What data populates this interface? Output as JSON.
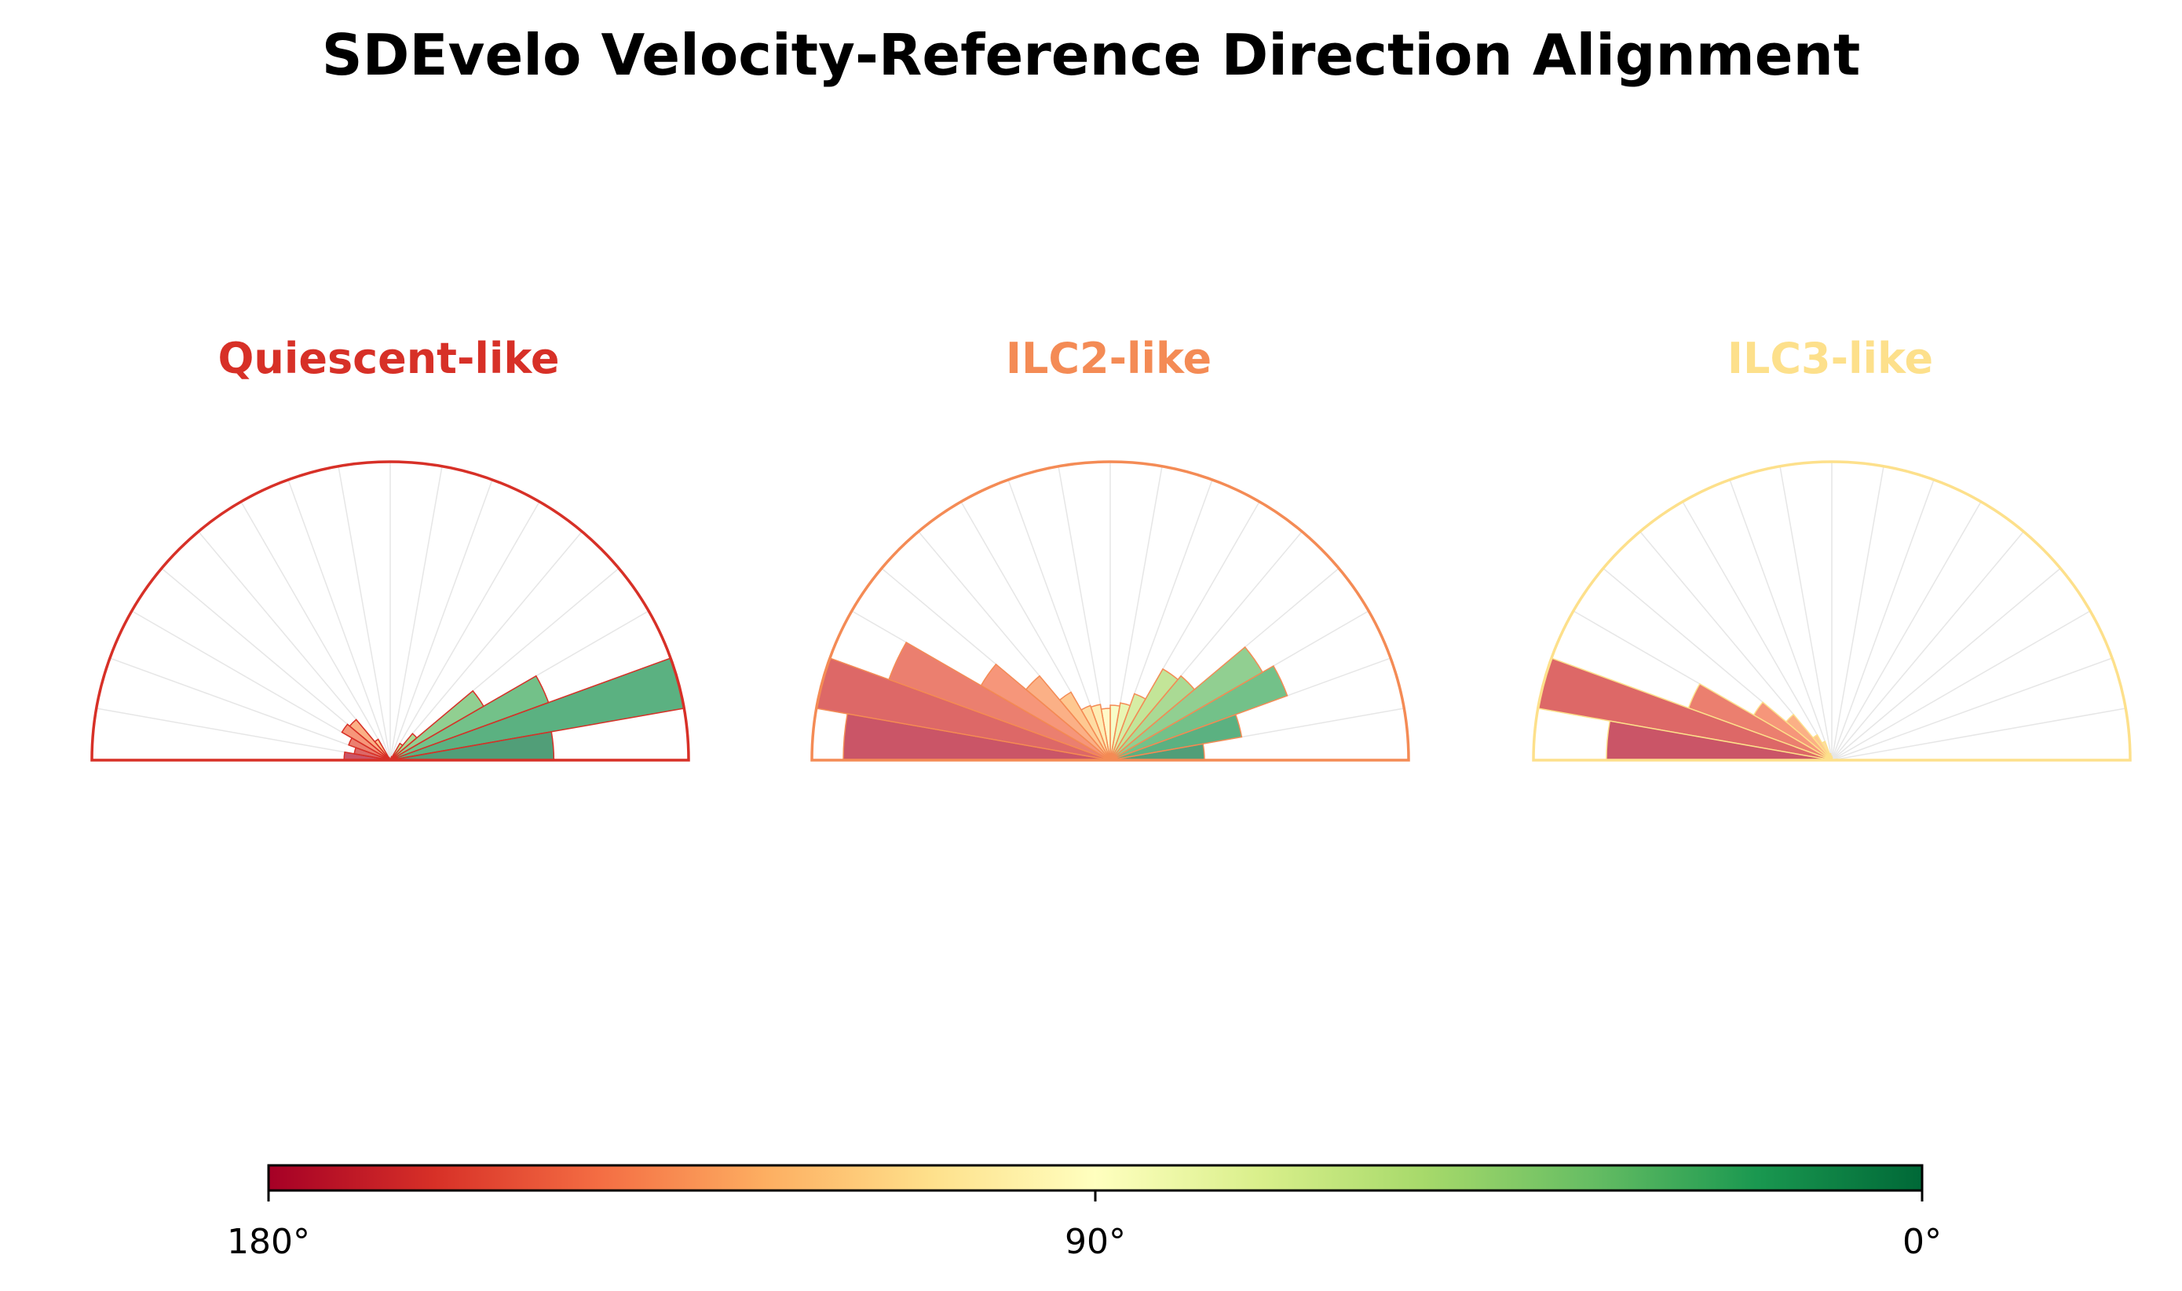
{
  "title": "SDEvelo Velocity-Reference Direction Alignment",
  "chart_data": [
    {
      "type": "polar-histogram",
      "title": "Quiescent-like",
      "title_color": "#d73027",
      "angle_range_deg": [
        0,
        180
      ],
      "bin_width_deg": 10,
      "bin_centers_deg": [
        5,
        15,
        25,
        35,
        45,
        55,
        65,
        75,
        85,
        95,
        105,
        115,
        125,
        135,
        145,
        155,
        165,
        175
      ],
      "counts": [
        0.17,
        0.31,
        0.175,
        0.112,
        0.036,
        0.02,
        0.004,
        0.0,
        0.0,
        0.0,
        0.0,
        0.003,
        0.025,
        0.055,
        0.058,
        0.046,
        0.038,
        0.048
      ]
    },
    {
      "type": "polar-histogram",
      "title": "ILC2-like",
      "title_color": "#f48b55",
      "angle_range_deg": [
        0,
        180
      ],
      "bin_width_deg": 10,
      "bin_centers_deg": [
        5,
        15,
        25,
        35,
        45,
        55,
        65,
        75,
        85,
        95,
        105,
        115,
        125,
        135,
        145,
        155,
        165,
        175
      ],
      "counts": [
        0.06,
        0.085,
        0.12,
        0.112,
        0.07,
        0.067,
        0.045,
        0.037,
        0.035,
        0.033,
        0.036,
        0.037,
        0.05,
        0.07,
        0.095,
        0.15,
        0.19,
        0.17
      ]
    },
    {
      "type": "polar-histogram",
      "title": "ILC3-like",
      "title_color": "#fde08b",
      "angle_range_deg": [
        0,
        180
      ],
      "bin_width_deg": 10,
      "bin_centers_deg": [
        5,
        15,
        25,
        35,
        45,
        55,
        65,
        75,
        85,
        95,
        105,
        115,
        125,
        135,
        145,
        155,
        165,
        175
      ],
      "counts": [
        0.004,
        0.0,
        0.0,
        0.0,
        0.0,
        0.0,
        0.0,
        0.0,
        0.002,
        0.003,
        0.005,
        0.015,
        0.022,
        0.045,
        0.068,
        0.115,
        0.225,
        0.17
      ]
    }
  ],
  "colorbar": {
    "colormap": "RdYlGn",
    "range_deg": [
      180,
      0
    ],
    "tick_labels": [
      "180°",
      "90°",
      "0°"
    ]
  },
  "colors": {
    "bar_edge_quiescent": "#d73027",
    "bar_edge_ilc2": "#f48b55",
    "bar_edge_ilc3": "#fde08b",
    "spoke_color": "#e6e6e6"
  }
}
